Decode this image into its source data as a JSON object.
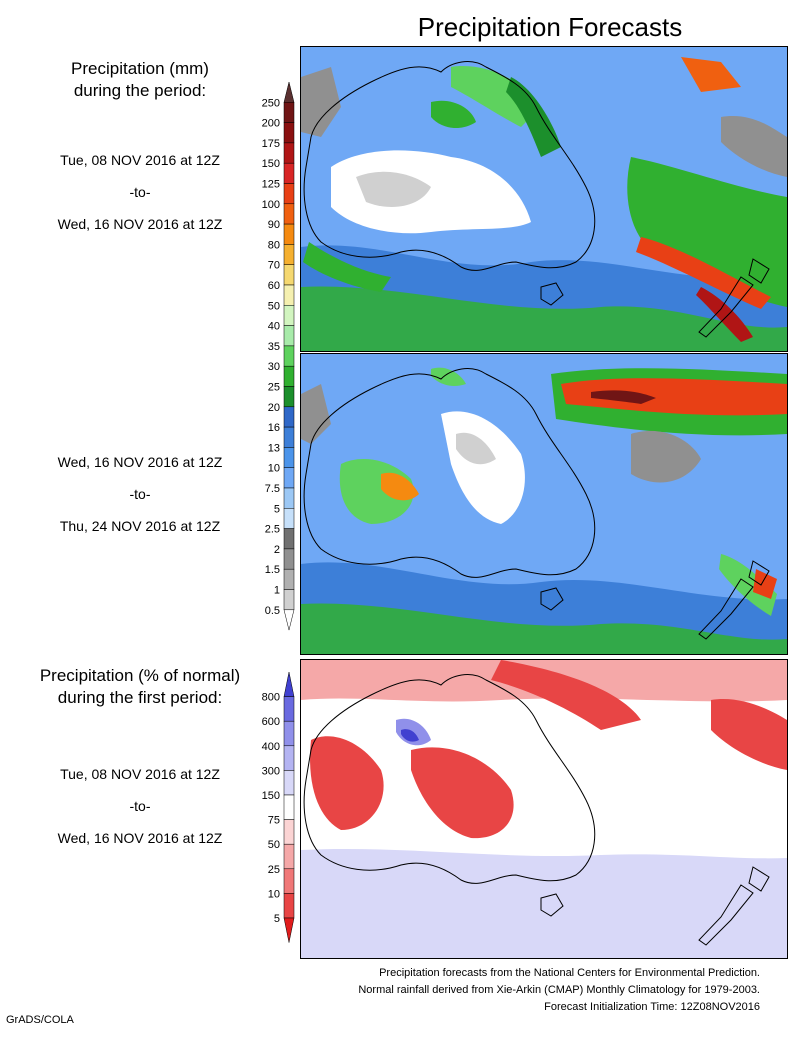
{
  "title": "Precipitation Forecasts",
  "legend_mm": {
    "title_lines": [
      "Precipitation (mm)",
      "during the period:"
    ],
    "labels": [
      "250",
      "200",
      "175",
      "150",
      "125",
      "100",
      "90",
      "80",
      "70",
      "60",
      "50",
      "40",
      "35",
      "30",
      "25",
      "20",
      "16",
      "13",
      "10",
      "7.5",
      "5",
      "2.5",
      "2",
      "1.5",
      "1",
      "0.5"
    ],
    "colors": [
      "#5a3030",
      "#701515",
      "#8a1010",
      "#b01515",
      "#d82525",
      "#e84015",
      "#f06010",
      "#f58a10",
      "#f5b030",
      "#f5d870",
      "#f5f0b0",
      "#d2f5c0",
      "#a8ebaa",
      "#5ed25e",
      "#30b030",
      "#1c8f2c",
      "#2f68c8",
      "#3d7fd8",
      "#4b94ea",
      "#6fa8f5",
      "#9cc8f5",
      "#c6e0fa",
      "#707070",
      "#909090",
      "#b0b0b0",
      "#d0d0d0",
      "#ffffff"
    ]
  },
  "legend_pct": {
    "title_lines": [
      "Precipitation (% of normal)",
      "during the first period:"
    ],
    "labels": [
      "800",
      "600",
      "400",
      "300",
      "150",
      "75",
      "50",
      "25",
      "10",
      "5"
    ],
    "colors": [
      "#4040d0",
      "#6a6ae0",
      "#9090ea",
      "#b4b4f2",
      "#d8d8f8",
      "#ffffff",
      "#fbd4d4",
      "#f5a8a8",
      "#f07878",
      "#e84545",
      "#e01c1c"
    ]
  },
  "periods": [
    {
      "start": "Tue, 08 NOV 2016 at 12Z",
      "sep": "-to-",
      "end": "Wed, 16 NOV 2016 at 12Z"
    },
    {
      "start": "Wed, 16 NOV 2016 at 12Z",
      "sep": "-to-",
      "end": "Thu, 24 NOV 2016 at 12Z"
    },
    {
      "start": "Tue, 08 NOV 2016 at 12Z",
      "sep": "-to-",
      "end": "Wed, 16 NOV 2016 at 12Z"
    }
  ],
  "footer": {
    "line1": "Precipitation forecasts from the National Centers for Environmental Prediction.",
    "line2": "Normal rainfall derived from Xie-Arkin (CMAP) Monthly Climatology for 1979-2003.",
    "line3": "Forecast Initialization Time: 12Z08NOV2016"
  },
  "credit": "GrADS/COLA"
}
